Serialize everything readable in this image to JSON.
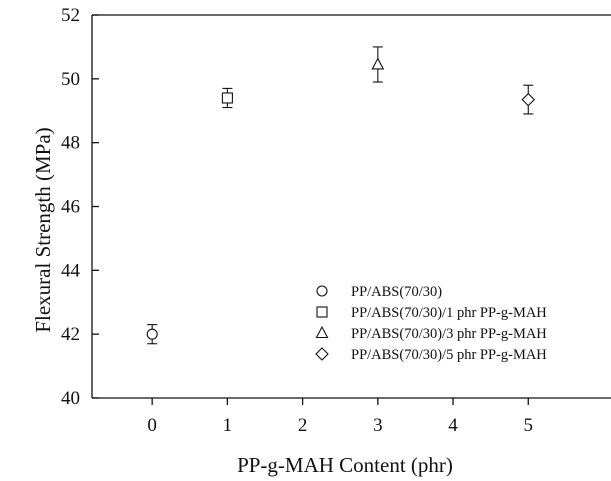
{
  "chart_data": {
    "type": "scatter",
    "xlabel": "PP-g-MAH Content (phr)",
    "ylabel": "Flexural Strength (MPa)",
    "xlim": [
      -0.8,
      6.1
    ],
    "ylim": [
      40,
      52
    ],
    "xticks": [
      0,
      1,
      2,
      3,
      4,
      5
    ],
    "yticks": [
      40,
      42,
      44,
      46,
      48,
      50,
      52
    ],
    "grid": false,
    "legend_position": "bottom-right",
    "series": [
      {
        "name": "PP/ABS(70/30)",
        "marker": "circle",
        "x": 0,
        "y": 42.0,
        "error": 0.3
      },
      {
        "name": "PP/ABS(70/30)/1 phr PP-g-MAH",
        "marker": "square",
        "x": 1,
        "y": 49.4,
        "error": 0.3
      },
      {
        "name": "PP/ABS(70/30)/3 phr PP-g-MAH",
        "marker": "triangle",
        "x": 3,
        "y": 50.45,
        "error": 0.55
      },
      {
        "name": "PP/ABS(70/30)/5 phr PP-g-MAH",
        "marker": "diamond",
        "x": 5,
        "y": 49.35,
        "error": 0.45
      }
    ]
  }
}
